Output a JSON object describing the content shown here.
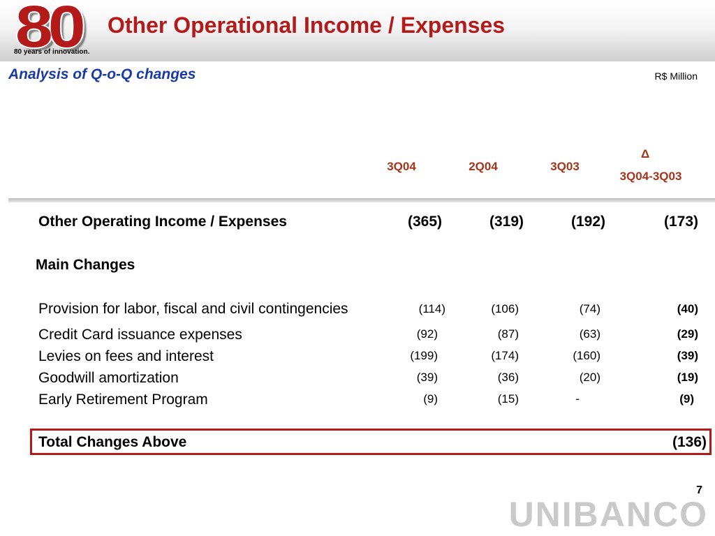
{
  "header": {
    "logo_text": "80",
    "logo_tagline": "80 years of innovation.",
    "title": "Other Operational Income / Expenses"
  },
  "subtitle": "Analysis of Q-o-Q changes",
  "unit": "R$ Million",
  "columns": {
    "c1": "3Q04",
    "c2": "2Q04",
    "c3": "3Q03",
    "delta_symbol": "Δ",
    "delta_label": "3Q04-3Q03"
  },
  "summary_row": {
    "label": "Other Operating Income / Expenses",
    "v1": "(365)",
    "v2": "(319)",
    "v3": "(192)",
    "delta": "(173)"
  },
  "main_changes_label": "Main Changes",
  "rows": [
    {
      "label": "Provision for labor, fiscal and civil contingencies",
      "v1": "(114)",
      "v2": "(106)",
      "v3": "(74)",
      "delta": "(40)"
    },
    {
      "label": "Credit Card issuance expenses",
      "v1": "(92)",
      "v2": "(87)",
      "v3": "(63)",
      "delta": "(29)"
    },
    {
      "label": "Levies on fees and interest",
      "v1": "(199)",
      "v2": "(174)",
      "v3": "(160)",
      "delta": "(39)"
    },
    {
      "label": "Goodwill amortization",
      "v1": "(39)",
      "v2": "(36)",
      "v3": "(20)",
      "delta": "(19)"
    },
    {
      "label": "Early Retirement Program",
      "v1": "(9)",
      "v2": "(15)",
      "v3": "-",
      "delta": "(9)"
    }
  ],
  "total": {
    "label": "Total Changes Above",
    "value": "(136)"
  },
  "page_number": "7",
  "brand": "UNIBANCO"
}
